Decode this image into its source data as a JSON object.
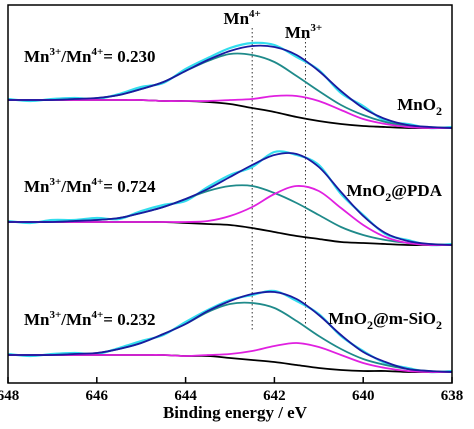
{
  "chart_data": {
    "type": "line",
    "x_label": "Binding energy / eV",
    "xlim": [
      648,
      638
    ],
    "xticks": [
      648,
      646,
      644,
      642,
      640,
      638
    ],
    "ylim": [
      0,
      378
    ],
    "x": [
      648,
      647.5,
      647,
      646.5,
      646,
      645.5,
      645,
      644.5,
      644,
      643.5,
      643,
      642.5,
      642,
      641.5,
      641,
      640.5,
      640,
      639.5,
      639,
      638.5,
      638
    ],
    "annotations": [
      {
        "base": "Mn",
        "sup": "4+",
        "x": 642.5
      },
      {
        "base": "Mn",
        "sup": "3+",
        "x": 641.3
      }
    ],
    "panels": [
      {
        "sample": [
          "MnO",
          "2"
        ],
        "ratio": [
          "Mn",
          "3+",
          "/Mn",
          "4+",
          "= 0.230"
        ],
        "series": [
          {
            "color": "#33ddee",
            "values": [
              284,
              282,
              284,
              285,
              284,
              289,
              296,
              300,
              314,
              325,
              335,
              340,
              338,
              326,
              313,
              290,
              277,
              262,
              259,
              255,
              256
            ]
          },
          {
            "color": "#000000",
            "values": [
              283,
              283,
              283,
              283,
              283,
              283,
              283,
              282,
              282,
              281,
              279,
              275,
              271,
              266,
              262,
              259,
              257,
              256,
              255,
              255,
              255
            ]
          },
          {
            "color": "#1f8a8a",
            "values": [
              283,
              283,
              283,
              284,
              285,
              288,
              294,
              301,
              312,
              322,
              329,
              328,
              321,
              307,
              292,
              278,
              268,
              261,
              257,
              256,
              255
            ]
          },
          {
            "color": "#e020e0",
            "values": [
              283,
              283,
              283,
              283,
              283,
              283,
              283,
              282,
              282,
              282,
              283,
              284,
              287,
              287,
              282,
              273,
              264,
              259,
              256,
              255,
              255
            ]
          },
          {
            "color": "#1a1aa0",
            "values": [
              283,
              283,
              283,
              284,
              285,
              288,
              294,
              301,
              312,
              323,
              332,
              337,
              336,
              328,
              312,
              292,
              275,
              264,
              258,
              256,
              255
            ]
          }
        ]
      },
      {
        "sample": [
          "MnO",
          "2",
          "@PDA"
        ],
        "ratio": [
          "Mn",
          "3+",
          "/Mn",
          "4+",
          "= 0.724"
        ],
        "series": [
          {
            "color": "#33ddee",
            "values": [
              162,
              160,
              163,
              163,
              165,
              164,
              172,
              178,
              182,
              196,
              208,
              216,
              231,
              228,
              218,
              189,
              168,
              149,
              143,
              138,
              139
            ]
          },
          {
            "color": "#000000",
            "values": [
              161,
              161,
              161,
              161,
              161,
              161,
              161,
              161,
              160,
              159,
              158,
              155,
              151,
              147,
              144,
              141,
              140,
              139,
              138,
              138,
              138
            ]
          },
          {
            "color": "#1f8a8a",
            "values": [
              161,
              161,
              161,
              162,
              163,
              165,
              170,
              176,
              184,
              192,
              197,
              197,
              190,
              180,
              168,
              156,
              148,
              143,
              140,
              139,
              138
            ]
          },
          {
            "color": "#e020e0",
            "values": [
              161,
              161,
              161,
              161,
              161,
              161,
              161,
              161,
              161,
              162,
              167,
              176,
              189,
              197,
              192,
              175,
              158,
              146,
              140,
              138,
              138
            ]
          },
          {
            "color": "#1a1aa0",
            "values": [
              161,
              161,
              161,
              162,
              163,
              165,
              170,
              176,
              184,
              194,
              206,
              218,
              228,
              229,
              216,
              191,
              167,
              150,
              142,
              139,
              138
            ]
          }
        ]
      },
      {
        "sample": [
          "MnO",
          "2",
          "@m-SiO",
          "2"
        ],
        "ratio": [
          "Mn",
          "3+",
          "/Mn",
          "4+",
          "= 0.232"
        ],
        "series": [
          {
            "color": "#33ddee",
            "values": [
              29,
              27,
              29,
              30,
              29,
              35,
              42,
              48,
              61,
              73,
              83,
              88,
              92,
              82,
              69,
              47,
              32,
              20,
              15,
              11,
              12
            ]
          },
          {
            "color": "#000000",
            "values": [
              28,
              28,
              28,
              28,
              28,
              28,
              28,
              28,
              27,
              27,
              25,
              23,
              21,
              18,
              15,
              13,
              12,
              12,
              11,
              11,
              11
            ]
          },
          {
            "color": "#1f8a8a",
            "values": [
              28,
              28,
              28,
              29,
              30,
              34,
              40,
              49,
              59,
              71,
              79,
              80,
              75,
              62,
              47,
              34,
              24,
              18,
              14,
              12,
              11
            ]
          },
          {
            "color": "#e020e0",
            "values": [
              28,
              28,
              28,
              28,
              28,
              28,
              28,
              28,
              27,
              28,
              29,
              32,
              37,
              40,
              36,
              28,
              20,
              15,
              12,
              11,
              11
            ]
          },
          {
            "color": "#1a1aa0",
            "values": [
              28,
              28,
              28,
              29,
              30,
              34,
              40,
              49,
              59,
              72,
              82,
              89,
              91,
              84,
              68,
              48,
              31,
              21,
              14,
              12,
              11
            ]
          }
        ]
      }
    ]
  }
}
